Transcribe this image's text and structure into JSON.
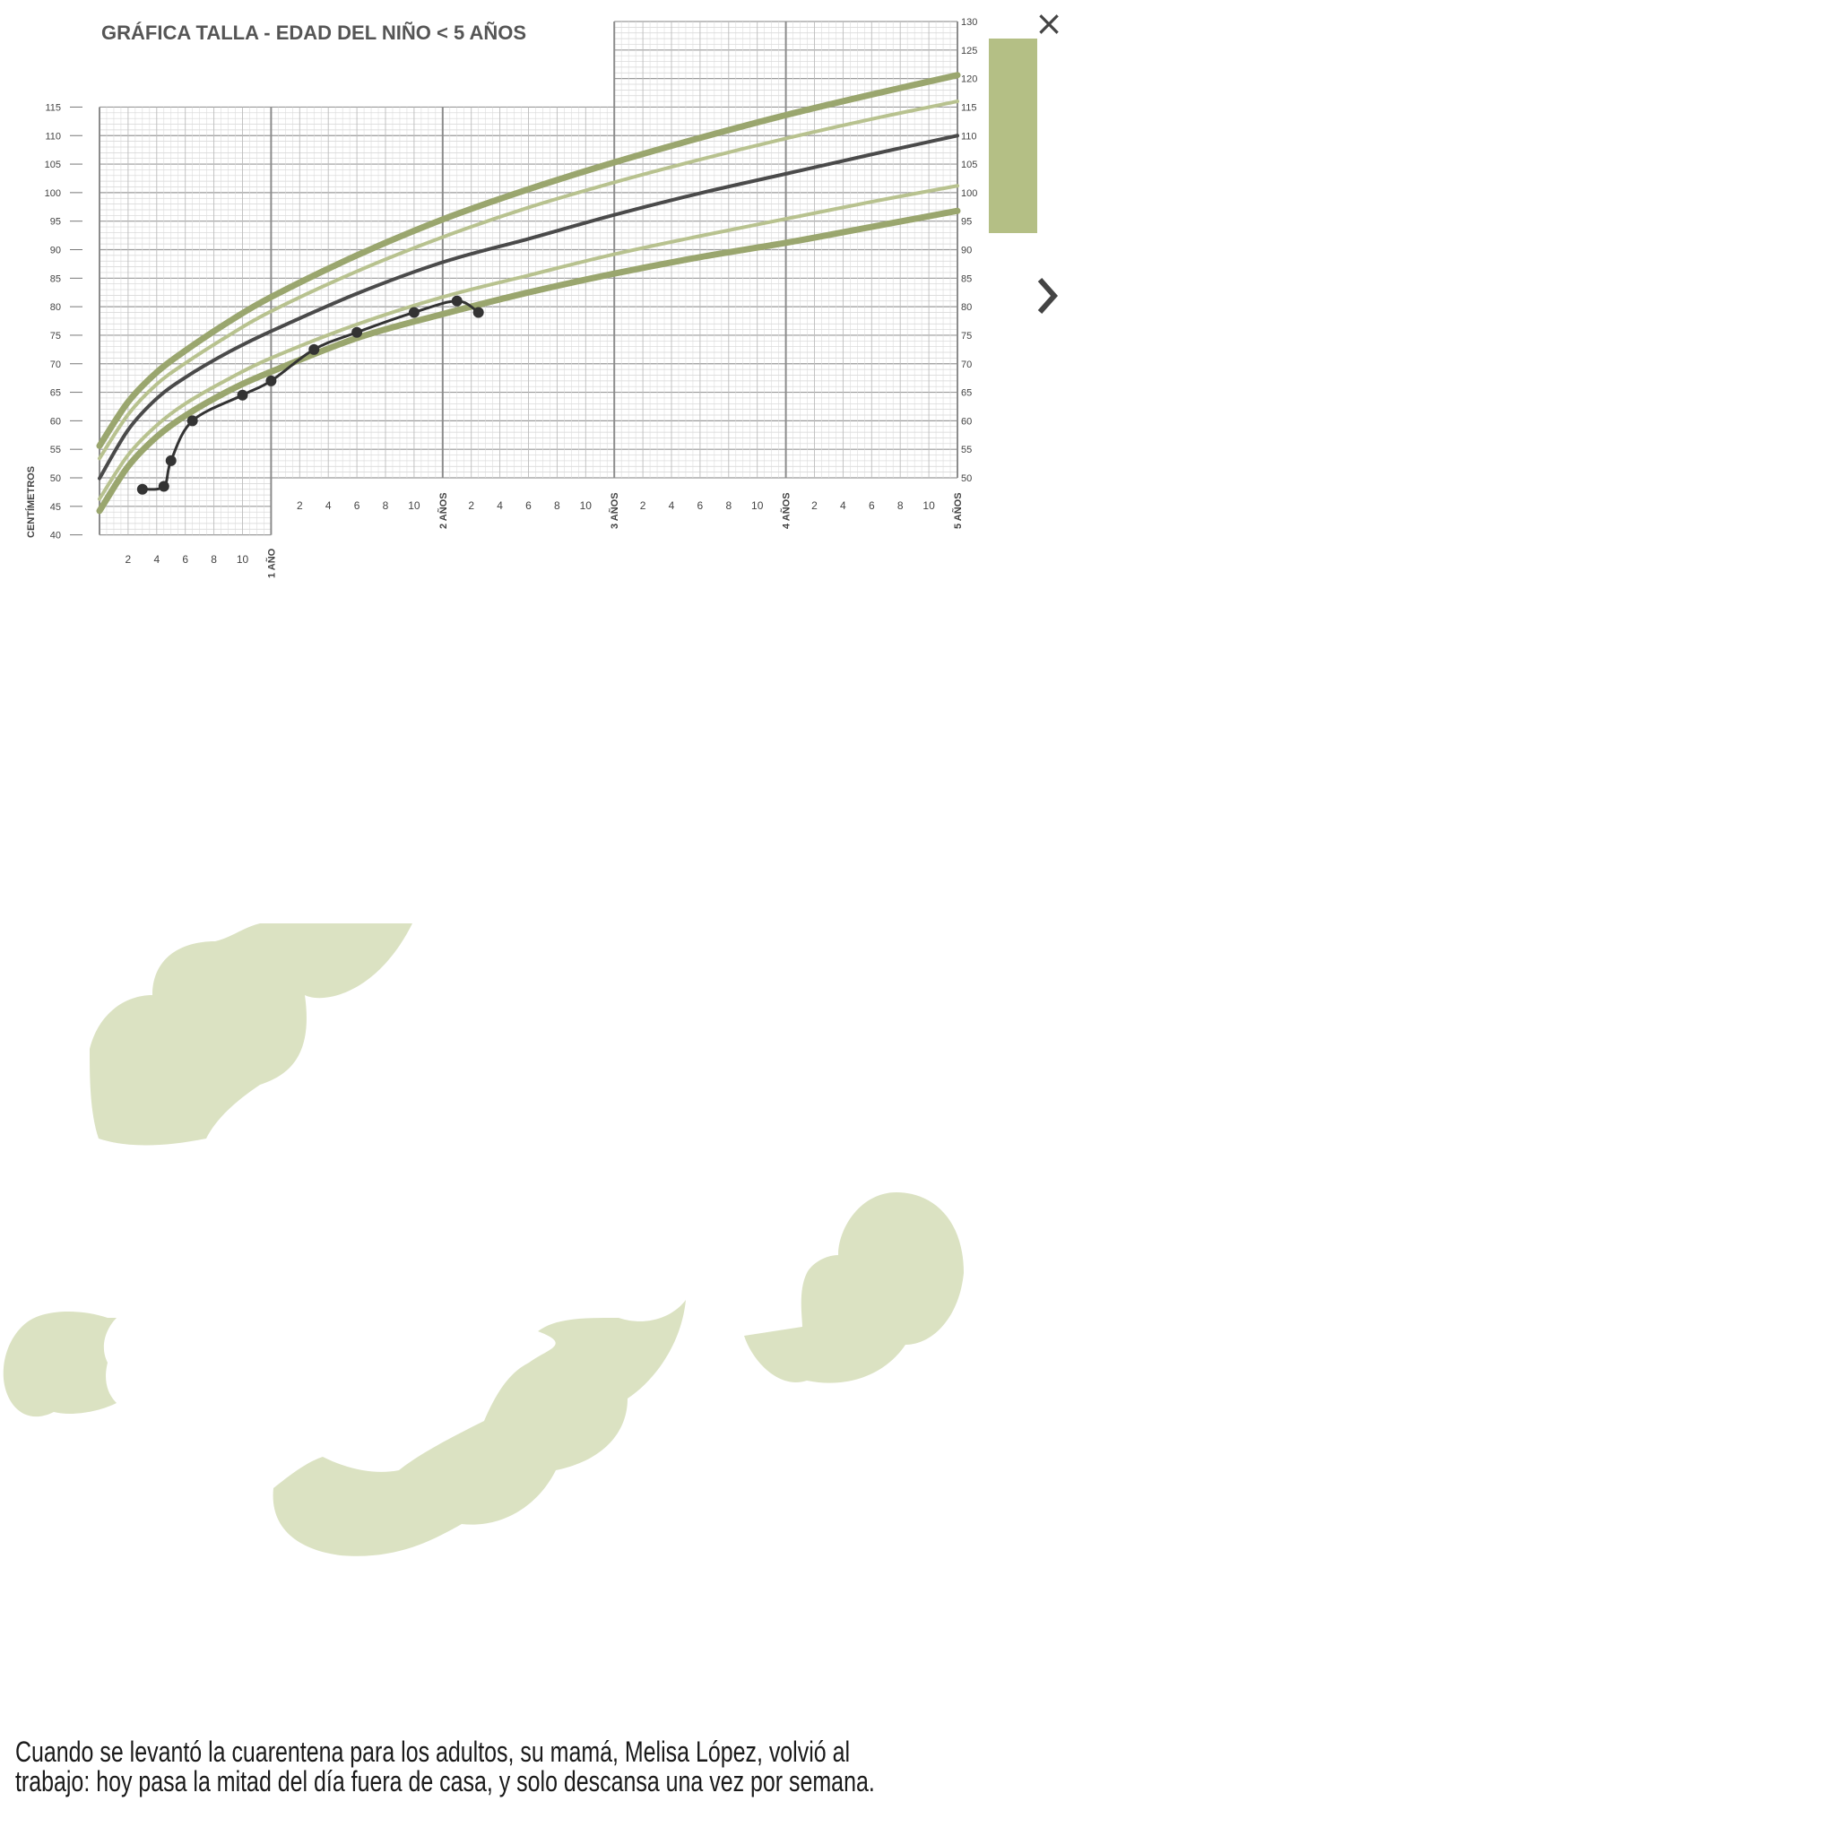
{
  "chart_data": {
    "type": "line",
    "title": "GRÁFICA TALLA - EDAD DEL NIÑO < 5 AÑOS",
    "ylabel": "CENTÍMETROS",
    "ylim": [
      40,
      130
    ],
    "xlim_months": [
      0,
      60
    ],
    "y_ticks_left": [
      40,
      45,
      50,
      55,
      60,
      65,
      70,
      75,
      80,
      85,
      90,
      95,
      100,
      105,
      110,
      115
    ],
    "y_ticks_right": [
      50,
      55,
      60,
      65,
      70,
      75,
      80,
      85,
      90,
      95,
      100,
      105,
      110,
      115,
      120,
      125,
      130
    ],
    "x_minor_ticks": [
      "2",
      "4",
      "6",
      "8",
      "10"
    ],
    "year_labels": [
      "1 AÑO",
      "2 AÑOS",
      "3 AÑOS",
      "4 AÑOS",
      "5 AÑOS"
    ],
    "series": [
      {
        "role": "upper-thick",
        "color": "#9aa66e",
        "x": [
          0,
          2,
          4,
          6,
          9,
          12,
          18,
          24,
          30,
          36,
          42,
          48,
          54,
          60
        ],
        "y": [
          55.6,
          63.3,
          68.5,
          72.3,
          77.3,
          81.7,
          89,
          95.3,
          100.6,
          105.3,
          109.6,
          113.6,
          117.2,
          120.6
        ]
      },
      {
        "role": "upper-thin",
        "color": "#b8c28f",
        "x": [
          0,
          2,
          4,
          6,
          9,
          12,
          18,
          24,
          30,
          36,
          42,
          48,
          54,
          60
        ],
        "y": [
          53.4,
          61.1,
          66.4,
          70.1,
          74.9,
          79.2,
          86.2,
          92.2,
          97.4,
          101.8,
          105.8,
          109.5,
          112.9,
          116.0
        ]
      },
      {
        "role": "median",
        "color": "#4a4a4a",
        "x": [
          0,
          2,
          4,
          6,
          9,
          12,
          18,
          24,
          30,
          36,
          42,
          48,
          54,
          60
        ],
        "y": [
          49.9,
          58.4,
          63.9,
          67.6,
          72.0,
          75.7,
          82.3,
          87.8,
          91.9,
          96.1,
          99.9,
          103.3,
          106.7,
          110.0
        ]
      },
      {
        "role": "lower-thin",
        "color": "#b8c28f",
        "x": [
          0,
          2,
          4,
          6,
          9,
          12,
          18,
          24,
          30,
          36,
          42,
          48,
          54,
          60
        ],
        "y": [
          46.3,
          54.0,
          59.2,
          63.0,
          67.3,
          71.0,
          76.9,
          81.7,
          85.5,
          89.2,
          92.4,
          95.4,
          98.4,
          101.2
        ]
      },
      {
        "role": "lower-thick",
        "color": "#9aa66e",
        "x": [
          0,
          2,
          4,
          6,
          9,
          12,
          18,
          24,
          30,
          36,
          42,
          48,
          54,
          60
        ],
        "y": [
          44.2,
          52.0,
          57.2,
          60.9,
          65.2,
          68.6,
          74.5,
          78.7,
          82.5,
          85.8,
          88.7,
          91.2,
          94.0,
          96.8
        ]
      },
      {
        "role": "child-measurements",
        "color": "#333333",
        "x": [
          3,
          4.5,
          5,
          6.5,
          10,
          12,
          15,
          18,
          22,
          25,
          26.5
        ],
        "y": [
          48,
          48.5,
          53,
          60,
          64.5,
          67,
          72.5,
          75.5,
          79,
          81,
          79
        ]
      }
    ]
  },
  "caption": {
    "line1": "Cuando se levantó la cuarentena para los adultos, su mamá, Melisa López, volvió al",
    "line2": "trabajo: hoy pasa la mitad del día fuera de casa, y solo descansa una vez por semana."
  },
  "controls": {
    "close_label": "×",
    "close_icon": "close-icon",
    "next_icon": "chevron-right-icon",
    "panel_color": "#b4bf85"
  },
  "decoration": {
    "cloud_color": "#dbe2c2"
  }
}
